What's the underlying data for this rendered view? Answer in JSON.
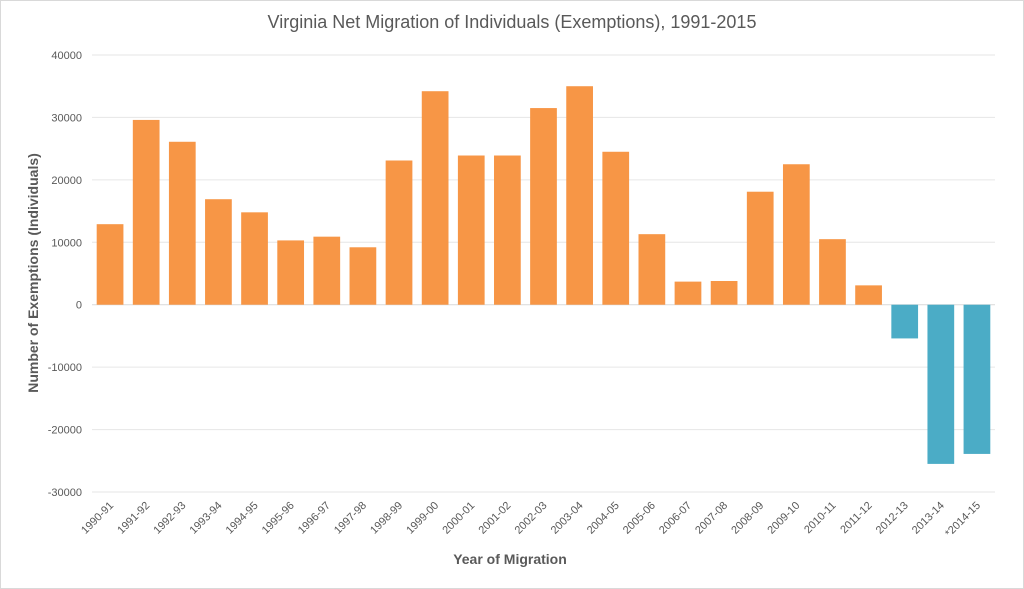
{
  "chart_data": {
    "type": "bar",
    "title": "Virginia Net Migration of Individuals (Exemptions), 1991-2015",
    "xlabel": "Year of Migration",
    "ylabel": "Number of Exemptions (Individuals)",
    "ylim": [
      -30000,
      40000
    ],
    "yticks": [
      40000,
      30000,
      20000,
      10000,
      0,
      -10000,
      -20000,
      -30000
    ],
    "grid": true,
    "categories": [
      "1990-91",
      "1991-92",
      "1992-93",
      "1993-94",
      "1994-95",
      "1995-96",
      "1996-97",
      "1997-98",
      "1998-99",
      "1999-00",
      "2000-01",
      "2001-02",
      "2002-03",
      "2003-04",
      "2004-05",
      "2005-06",
      "2006-07",
      "2007-08",
      "2008-09",
      "2009-10",
      "2010-11",
      "2011-12",
      "2012-13",
      "2013-14",
      "*2014-15"
    ],
    "values": [
      12900,
      29600,
      26100,
      16900,
      14800,
      10300,
      10900,
      9200,
      23100,
      34200,
      23900,
      23900,
      31500,
      35000,
      24500,
      11300,
      3700,
      3800,
      18100,
      22500,
      10500,
      3100,
      -5400,
      -25500,
      -23900
    ],
    "colors": {
      "positive": "#F79646",
      "negative": "#4BACC6"
    }
  }
}
